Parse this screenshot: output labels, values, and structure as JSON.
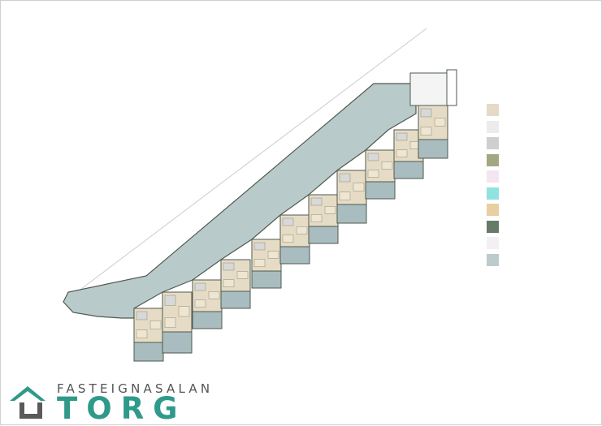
{
  "logo": {
    "line1": "FASTEIGNASALAN",
    "line2": "TORG",
    "accent": "#2f9a8a",
    "dark": "#5a5a5a"
  },
  "colors": {
    "garage": "#b9cacb",
    "unit": "#e6dcc6",
    "wall": "#4e5a4e",
    "terrace": "#a9bcbf"
  },
  "legend": {
    "swatches": [
      "#e4dac6",
      "#ececec",
      "#cfcfcf",
      "#a4a882",
      "#f3e6f2",
      "#8fe3df",
      "#e9cfa0",
      "#667a68",
      "#f2f0f2",
      "#bccbcc"
    ]
  }
}
